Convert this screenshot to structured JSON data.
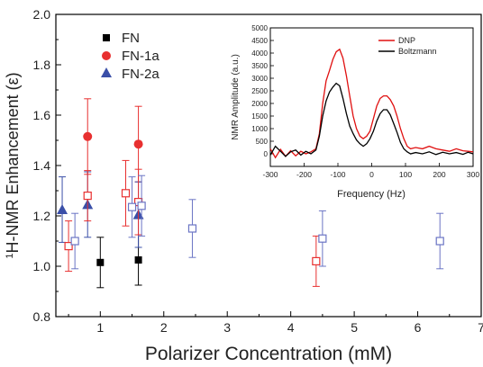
{
  "chart_data": [
    {
      "type": "scatter",
      "xlabel": "Polarizer Concentration (mM)",
      "ylabel_prefix": "1",
      "ylabel": "H-NMR Enhancement (ε)",
      "xlim": [
        0.3,
        7
      ],
      "ylim": [
        0.8,
        2.0
      ],
      "x_ticks": [
        "1",
        "2",
        "3",
        "4",
        "5",
        "6",
        "7"
      ],
      "y_ticks": [
        "0.8",
        "1.0",
        "1.2",
        "1.4",
        "1.6",
        "1.8",
        "2.0"
      ],
      "legend": [
        "FN",
        "FN-1a",
        "FN-2a"
      ],
      "series": [
        {
          "name": "FN",
          "marker": "square",
          "color": "#000000",
          "points": [
            {
              "x": 1.0,
              "y": 1.015,
              "err": 0.1
            },
            {
              "x": 1.6,
              "y": 1.025,
              "err": 0.1
            }
          ]
        },
        {
          "name": "FN-1a",
          "marker": "circle",
          "color": "#e83030",
          "points": [
            {
              "x": 0.8,
              "y": 1.515,
              "err": 0.15
            },
            {
              "x": 1.6,
              "y": 1.485,
              "err": 0.15
            }
          ]
        },
        {
          "name": "FN-2a",
          "marker": "triangle",
          "color": "#3a4fa8",
          "points": [
            {
              "x": 0.4,
              "y": 1.225,
              "err": 0.13
            },
            {
              "x": 0.8,
              "y": 1.245,
              "err": 0.13
            },
            {
              "x": 1.6,
              "y": 1.205,
              "err": 0.13
            }
          ]
        },
        {
          "name": "",
          "marker": "open-square",
          "color": "#e83030",
          "points": [
            {
              "x": 0.5,
              "y": 1.08,
              "err": 0.1
            },
            {
              "x": 0.8,
              "y": 1.28,
              "err": 0.1
            },
            {
              "x": 1.4,
              "y": 1.29,
              "err": 0.13
            },
            {
              "x": 1.6,
              "y": 1.255,
              "err": 0.13
            },
            {
              "x": 4.4,
              "y": 1.02,
              "err": 0.1
            }
          ]
        },
        {
          "name": "",
          "marker": "open-square",
          "color": "#6a74c4",
          "points": [
            {
              "x": 0.6,
              "y": 1.1,
              "err": 0.11
            },
            {
              "x": 1.5,
              "y": 1.235,
              "err": 0.12
            },
            {
              "x": 1.65,
              "y": 1.24,
              "err": 0.12
            },
            {
              "x": 2.45,
              "y": 1.15,
              "err": 0.115
            },
            {
              "x": 4.5,
              "y": 1.11,
              "err": 0.11
            },
            {
              "x": 6.35,
              "y": 1.1,
              "err": 0.11
            }
          ]
        }
      ]
    },
    {
      "type": "line",
      "xlabel": "Frequency (Hz)",
      "ylabel": "NMR Amplitude (a.u.)",
      "xlim": [
        -300,
        300
      ],
      "ylim": [
        -500,
        5000
      ],
      "x_ticks": [
        "-300",
        "-200",
        "-100",
        "0",
        "100",
        "200",
        "300"
      ],
      "y_ticks": [
        "0",
        "500",
        "1000",
        "1500",
        "2000",
        "2500",
        "3000",
        "3500",
        "4000",
        "4500",
        "5000"
      ],
      "series": [
        {
          "name": "DNP",
          "color": "#e01010",
          "x": [
            -300,
            -285,
            -270,
            -255,
            -240,
            -225,
            -210,
            -195,
            -180,
            -165,
            -155,
            -145,
            -135,
            -125,
            -115,
            -105,
            -95,
            -85,
            -75,
            -65,
            -55,
            -45,
            -35,
            -25,
            -15,
            -5,
            5,
            15,
            25,
            35,
            45,
            55,
            65,
            75,
            85,
            95,
            105,
            115,
            130,
            150,
            170,
            190,
            210,
            230,
            250,
            270,
            285,
            300
          ],
          "y": [
            200,
            -150,
            180,
            -100,
            120,
            -80,
            100,
            0,
            80,
            200,
            800,
            2000,
            2900,
            3300,
            3750,
            4050,
            4150,
            3800,
            3100,
            2300,
            1500,
            1000,
            700,
            600,
            700,
            900,
            1400,
            1900,
            2200,
            2300,
            2300,
            2150,
            1900,
            1500,
            1000,
            600,
            300,
            200,
            250,
            200,
            300,
            200,
            150,
            100,
            200,
            120,
            100,
            80
          ]
        },
        {
          "name": "Boltzmann",
          "color": "#000000",
          "x": [
            -300,
            -285,
            -270,
            -255,
            -240,
            -225,
            -210,
            -195,
            -180,
            -165,
            -155,
            -145,
            -135,
            -125,
            -115,
            -105,
            -95,
            -85,
            -75,
            -65,
            -55,
            -45,
            -35,
            -25,
            -15,
            -5,
            5,
            15,
            25,
            35,
            45,
            55,
            65,
            75,
            85,
            95,
            105,
            115,
            130,
            150,
            170,
            190,
            210,
            230,
            250,
            270,
            285,
            300
          ],
          "y": [
            -50,
            300,
            100,
            -100,
            80,
            150,
            -50,
            100,
            0,
            150,
            700,
            1500,
            2100,
            2450,
            2650,
            2800,
            2700,
            2200,
            1600,
            1100,
            800,
            550,
            400,
            300,
            400,
            600,
            900,
            1300,
            1600,
            1750,
            1750,
            1550,
            1200,
            850,
            450,
            200,
            80,
            0,
            50,
            0,
            80,
            -30,
            60,
            0,
            50,
            -20,
            60,
            0
          ]
        }
      ]
    }
  ]
}
